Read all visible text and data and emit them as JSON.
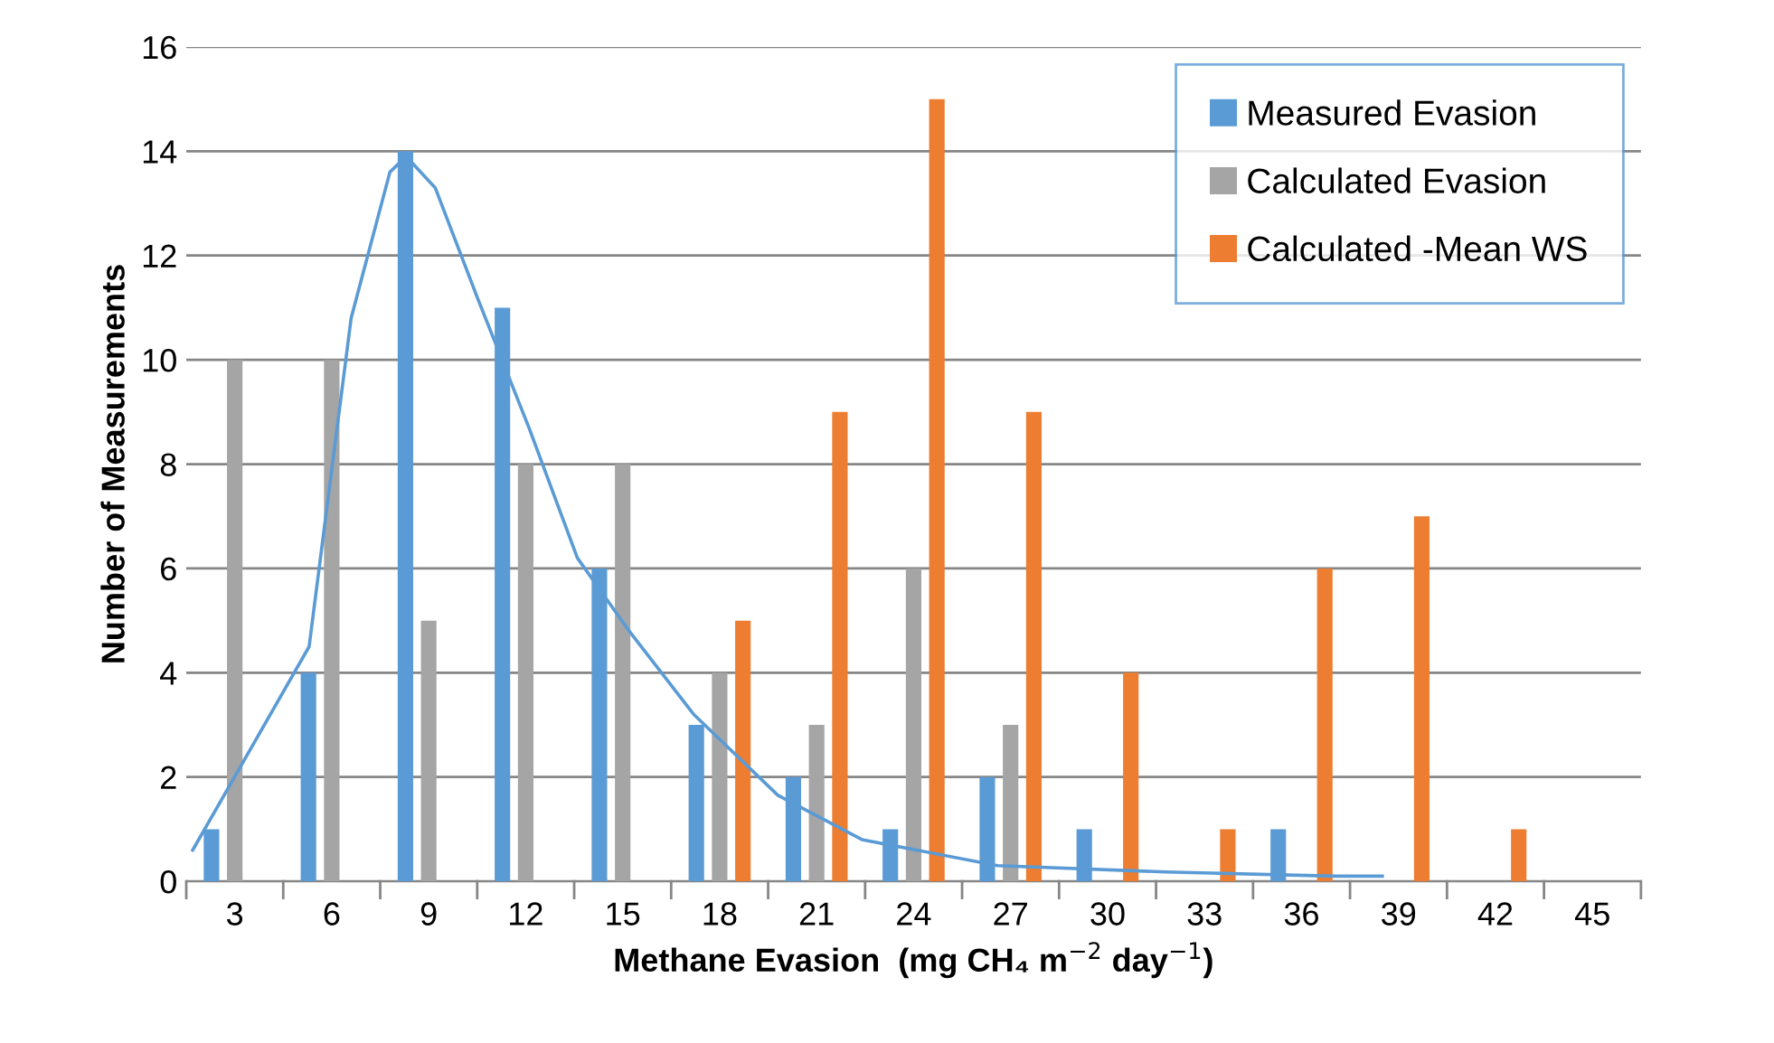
{
  "chart_data": {
    "type": "bar",
    "xlabel": "Methane Evasion  (mg CH₄ m$^{−2}$ day$^{−1}$)",
    "ylabel": "Number of Measurements",
    "x": [
      3,
      6,
      9,
      12,
      15,
      18,
      21,
      24,
      27,
      30,
      33,
      36,
      39,
      42,
      45
    ],
    "xlim": [
      1.5,
      46.5
    ],
    "xticks": [
      3,
      6,
      9,
      12,
      15,
      18,
      21,
      24,
      27,
      30,
      33,
      36,
      39,
      42,
      45
    ],
    "ylim": [
      0,
      16
    ],
    "yticks": [
      0,
      2,
      4,
      6,
      8,
      10,
      12,
      14,
      16
    ],
    "grid": "y",
    "legend": "top right",
    "series": [
      {
        "name": "Measured Evasion",
        "color": "#5b9bd5",
        "values": [
          1,
          4,
          14,
          11,
          6,
          3,
          2,
          1,
          2,
          1,
          0,
          1,
          0,
          0,
          0
        ]
      },
      {
        "name": "Calculated Evasion",
        "color": "#a5a5a5",
        "values": [
          10,
          10,
          5,
          8,
          8,
          4,
          3,
          6,
          3,
          0,
          0,
          0,
          0,
          0,
          0
        ]
      },
      {
        "name": "Calculated -Mean WS",
        "color": "#ed7d31",
        "values": [
          0,
          0,
          0,
          0,
          0,
          5,
          9,
          15,
          9,
          4,
          1,
          6,
          7,
          1,
          0
        ]
      },
      {
        "type": "line",
        "color": "#5b9bd5",
        "marker": "none",
        "x": [
          1.7,
          5.3,
          6.6,
          7.8,
          8.3,
          9.2,
          10.5,
          12.1,
          13.6,
          15.2,
          17.2,
          19.8,
          22.4,
          26.6,
          31.8,
          37,
          38.5
        ],
        "values": [
          0.6,
          4.5,
          10.8,
          13.6,
          13.9,
          13.3,
          11.2,
          8.7,
          6.2,
          4.8,
          3.2,
          1.65,
          0.8,
          0.3,
          0.18,
          0.1,
          0.1
        ]
      }
    ]
  }
}
